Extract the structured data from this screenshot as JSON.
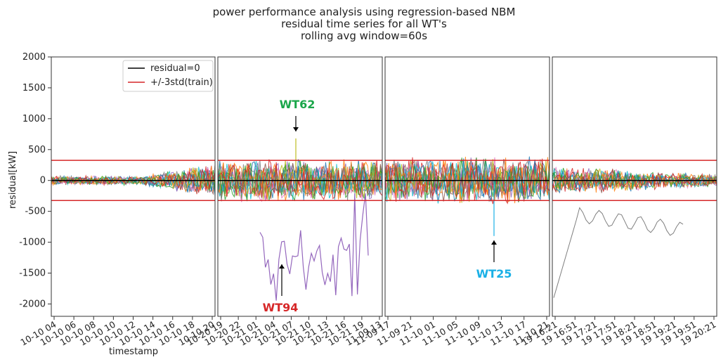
{
  "chart_data": {
    "type": "line",
    "title": [
      "power performance analysis using regression-based NBM",
      "residual time series for all WT's",
      "rolling avg window=60s"
    ],
    "ylabel": "residual[kW]",
    "xlabel": "timestamp",
    "ylim": [
      -2200,
      2000
    ],
    "yticks": [
      2000,
      1500,
      1000,
      500,
      0,
      -500,
      -1000,
      -1500,
      -2000
    ],
    "reference_lines": {
      "zero": 0,
      "upper": 325,
      "lower": -325
    },
    "colors": {
      "zero": "#000000",
      "band": "#d62728",
      "WT62": "#1aa64a",
      "WT94": "#d62728",
      "WT25": "#1ab0e6"
    },
    "legend": {
      "position": "top-right of first panel",
      "entries": [
        "residual=0",
        "+/-3std(train)"
      ]
    },
    "panels": [
      {
        "xticks": [
          "10-10 04",
          "10-10 06",
          "10-10 08",
          "10-10 10",
          "10-10 12",
          "10-10 14",
          "10-10 16",
          "10-10 18",
          "10-10 20"
        ],
        "band_envelope": 320
      },
      {
        "xticks": [
          "10-20 19",
          "10-20 22",
          "10-21 01",
          "10-21 04",
          "10-21 07",
          "10-21 10",
          "10-21 13",
          "10-21 16",
          "10-21 19",
          "11-09 13"
        ],
        "band_envelope": 360
      },
      {
        "xticks": [
          "11-09 17",
          "11-09 21",
          "11-10 01",
          "11-10 05",
          "11-10 09",
          "11-10 13",
          "11-10 17",
          "11-10 21"
        ],
        "band_envelope": 400
      },
      {
        "xticks": [
          "19 16:21",
          "19 16:51",
          "19 17:21",
          "19 17:51",
          "19 18:21",
          "19 18:51",
          "19 19:21",
          "19 19:51",
          "19 20:21"
        ],
        "band_envelope": 250
      }
    ],
    "annotations": [
      {
        "label": "WT62",
        "panel": 1,
        "peak": 680
      },
      {
        "label": "WT94",
        "panel": 1,
        "trough": -1950
      },
      {
        "label": "WT25",
        "panel": 2,
        "trough": -900
      }
    ]
  }
}
